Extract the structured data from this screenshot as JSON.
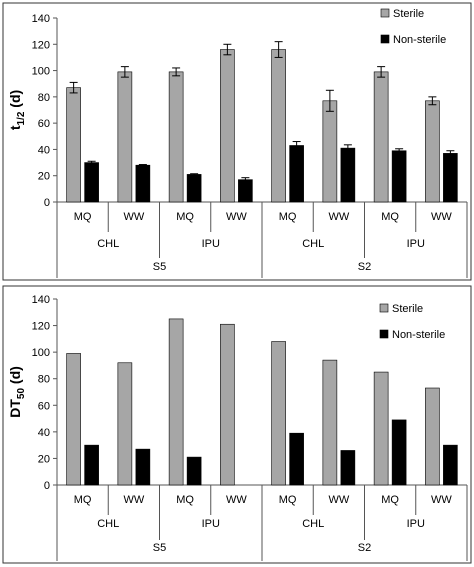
{
  "chart_data": [
    {
      "type": "bar",
      "ylabel_main": "t",
      "ylabel_sub": "1/2",
      "ylabel_unit": " (d)",
      "ylim": [
        0,
        140
      ],
      "yticks": [
        "0",
        "20",
        "40",
        "60",
        "80",
        "100",
        "120",
        "140"
      ],
      "legend_position": "top-right",
      "categories": [
        "MQ",
        "WW",
        "MQ",
        "WW",
        "MQ",
        "WW",
        "MQ",
        "WW"
      ],
      "groups": [
        {
          "label": "CHL",
          "span": 2
        },
        {
          "label": "IPU",
          "span": 2
        },
        {
          "label": "CHL",
          "span": 2
        },
        {
          "label": "IPU",
          "span": 2
        }
      ],
      "supergroups": [
        {
          "label": "S5",
          "span": 4
        },
        {
          "label": "S2",
          "span": 4
        }
      ],
      "series": [
        {
          "name": "Sterile",
          "color": "#a6a6a6",
          "values": [
            87,
            99,
            99,
            116,
            116,
            77,
            99,
            77
          ],
          "errors": [
            4,
            4,
            3,
            4,
            6,
            8,
            4,
            3
          ]
        },
        {
          "name": "Non-sterile",
          "color": "#000000",
          "values": [
            30,
            28,
            21,
            17,
            43,
            41,
            39,
            37
          ],
          "errors": [
            1,
            0.5,
            0.5,
            1.5,
            3,
            2.5,
            1.5,
            2
          ]
        }
      ],
      "error_bars": true
    },
    {
      "type": "bar",
      "ylabel_main": "DT",
      "ylabel_sub": "50",
      "ylabel_unit": " (d)",
      "ylim": [
        0,
        140
      ],
      "yticks": [
        "0",
        "20",
        "40",
        "60",
        "80",
        "100",
        "120",
        "140"
      ],
      "legend_position": "top-right",
      "categories": [
        "MQ",
        "WW",
        "MQ",
        "WW",
        "MQ",
        "WW",
        "MQ",
        "WW"
      ],
      "groups": [
        {
          "label": "CHL",
          "span": 2
        },
        {
          "label": "IPU",
          "span": 2
        },
        {
          "label": "CHL",
          "span": 2
        },
        {
          "label": "IPU",
          "span": 2
        }
      ],
      "supergroups": [
        {
          "label": "S5",
          "span": 4
        },
        {
          "label": "S2",
          "span": 4
        }
      ],
      "series": [
        {
          "name": "Sterile",
          "color": "#a6a6a6",
          "values": [
            99,
            92,
            125,
            121,
            108,
            94,
            85,
            73
          ]
        },
        {
          "name": "Non-sterile",
          "color": "#000000",
          "values": [
            30,
            27,
            21,
            0,
            39,
            26,
            49,
            30
          ]
        }
      ],
      "error_bars": false
    }
  ]
}
